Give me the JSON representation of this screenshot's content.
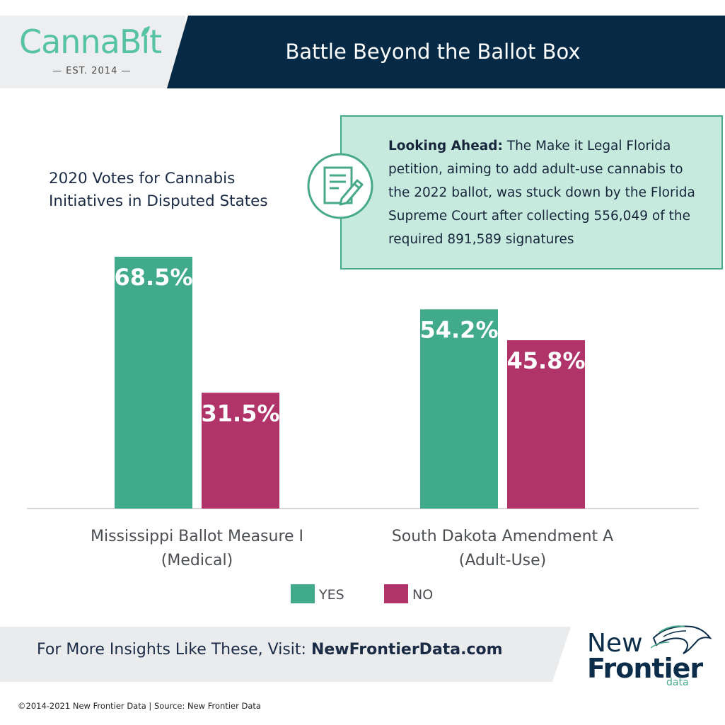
{
  "header": {
    "logo_brand": "CannaBit",
    "logo_brand_part1": "Canna",
    "logo_brand_part2": "Bit",
    "logo_tagline": "— EST. 2014 —",
    "title": "Battle Beyond the Ballot Box"
  },
  "callout": {
    "icon": "document-pen-icon",
    "lead": "Looking Ahead:",
    "body": "The Make it Legal Florida petition, aiming to add adult-use cannabis to the 2022 ballot, was stuck down by the Florida Supreme Court after collecting 556,049 of the required 891,589 signatures"
  },
  "chart_data": {
    "type": "bar",
    "title": "2020 Votes for Cannabis Initiatives in Disputed States",
    "categories": [
      "Mississippi Ballot Measure I (Medical)",
      "South Dakota Amendment A (Adult-Use)"
    ],
    "category_lines": [
      [
        "Mississippi Ballot Measure I",
        "(Medical)"
      ],
      [
        "South Dakota Amendment A",
        "(Adult-Use)"
      ]
    ],
    "series": [
      {
        "name": "YES",
        "values": [
          68.5,
          54.2
        ],
        "labels": [
          "68.5%",
          "54.2%"
        ],
        "color": "#40aa8a"
      },
      {
        "name": "NO",
        "values": [
          31.5,
          45.8
        ],
        "labels": [
          "31.5%",
          "45.8%"
        ],
        "color": "#b0346a"
      }
    ],
    "ylim": [
      0,
      70
    ],
    "grid": false,
    "legend": "bottom-center",
    "xlabel": "",
    "ylabel": ""
  },
  "footer": {
    "cta_prefix": "For More Insights Like These, Visit:",
    "cta_link": "NewFrontierData.com",
    "logo_line1": "New",
    "logo_line2": "Frontier",
    "logo_line3": "data",
    "copyright": "©2014-2021 New Frontier Data | Source: New Frontier Data"
  },
  "colors": {
    "navy": "#062a45",
    "teal": "#40aa8a",
    "magenta": "#b0346a",
    "mint": "#c7eadf"
  }
}
